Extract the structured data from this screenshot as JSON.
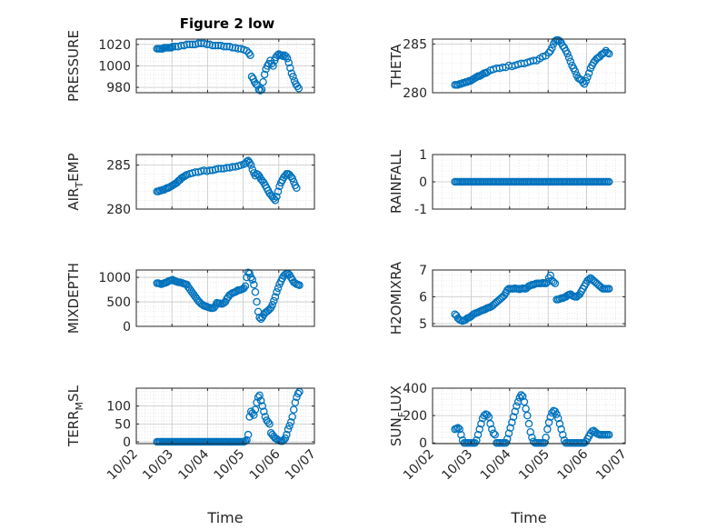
{
  "figure": {
    "title": "Figure 2 low"
  },
  "chart_data": [
    {
      "type": "scatter",
      "ylabel": "PRESSURE",
      "title": "Figure 2 low",
      "ylim": [
        975,
        1025
      ],
      "yticks": [
        980,
        1000,
        1020
      ],
      "xlim": [
        "10/02",
        "10/07"
      ],
      "x": [
        2.58,
        2.62,
        2.66,
        2.7,
        2.74,
        2.78,
        2.82,
        2.86,
        2.9,
        2.94,
        2.98,
        3.02,
        3.1,
        3.18,
        3.26,
        3.34,
        3.42,
        3.5,
        3.58,
        3.66,
        3.74,
        3.82,
        3.9,
        3.98,
        4.06,
        4.14,
        4.22,
        4.3,
        4.38,
        4.46,
        4.54,
        4.62,
        4.7,
        4.78,
        4.86,
        4.94,
        5.02,
        5.1,
        5.16,
        5.2,
        5.24,
        5.28,
        5.32,
        5.36,
        5.4,
        5.44,
        5.48,
        5.52,
        5.56,
        5.6,
        5.64,
        5.68,
        5.72,
        5.76,
        5.8,
        5.84,
        5.88,
        5.92,
        5.96,
        6.0,
        6.04,
        6.08,
        6.12,
        6.16,
        6.2,
        6.24,
        6.28,
        6.32,
        6.36,
        6.4,
        6.44,
        6.48,
        6.52,
        6.56
      ],
      "y": [
        1016,
        1016,
        1016,
        1016,
        1016,
        1017,
        1017,
        1017,
        1017,
        1017,
        1017,
        1018,
        1018,
        1018,
        1019,
        1019,
        1020,
        1020,
        1020,
        1020,
        1021,
        1021,
        1021,
        1020,
        1020,
        1019,
        1019,
        1019,
        1019,
        1018,
        1018,
        1018,
        1017,
        1017,
        1016,
        1016,
        1015,
        1014,
        1012,
        1010,
        990,
        988,
        985,
        983,
        982,
        978,
        977,
        978,
        985,
        992,
        997,
        1000,
        1002,
        1005,
        1002,
        1000,
        1005,
        1008,
        1010,
        1011,
        1010,
        1010,
        1009,
        1010,
        1009,
        1007,
        1003,
        998,
        993,
        990,
        986,
        983,
        981,
        979
      ]
    },
    {
      "type": "scatter",
      "ylabel": "THETA",
      "ylim": [
        280,
        285.5
      ],
      "yticks": [
        280,
        285
      ],
      "xlim": [
        "10/02",
        "10/07"
      ],
      "x": [
        2.58,
        2.62,
        2.66,
        2.7,
        2.74,
        2.78,
        2.82,
        2.86,
        2.9,
        2.94,
        2.98,
        3.02,
        3.06,
        3.1,
        3.14,
        3.18,
        3.22,
        3.26,
        3.3,
        3.34,
        3.38,
        3.42,
        3.5,
        3.58,
        3.66,
        3.74,
        3.82,
        3.9,
        3.98,
        4.06,
        4.14,
        4.22,
        4.3,
        4.38,
        4.46,
        4.54,
        4.62,
        4.7,
        4.78,
        4.86,
        4.94,
        5.02,
        5.06,
        5.1,
        5.14,
        5.18,
        5.22,
        5.26,
        5.3,
        5.34,
        5.38,
        5.42,
        5.46,
        5.5,
        5.54,
        5.58,
        5.62,
        5.66,
        5.7,
        5.74,
        5.78,
        5.82,
        5.86,
        5.9,
        5.94,
        5.98,
        6.02,
        6.06,
        6.1,
        6.14,
        6.18,
        6.22,
        6.26,
        6.3,
        6.34,
        6.38,
        6.42,
        6.46,
        6.5,
        6.54,
        6.58
      ],
      "y": [
        280.8,
        280.8,
        280.8,
        280.9,
        280.9,
        281.0,
        281.0,
        281.1,
        281.1,
        281.2,
        281.2,
        281.3,
        281.4,
        281.5,
        281.6,
        281.7,
        281.7,
        281.8,
        281.9,
        282.0,
        282.0,
        282.1,
        282.3,
        282.4,
        282.5,
        282.5,
        282.6,
        282.6,
        282.8,
        282.7,
        282.8,
        282.9,
        283.0,
        283.0,
        283.1,
        283.2,
        283.3,
        283.3,
        283.5,
        283.7,
        283.8,
        284.1,
        284.3,
        284.6,
        285.0,
        285.3,
        285.4,
        285.4,
        285.3,
        285.1,
        284.8,
        284.6,
        284.3,
        284.0,
        283.6,
        283.2,
        282.8,
        282.5,
        282.2,
        281.8,
        281.5,
        281.4,
        281.3,
        281.1,
        280.9,
        281.2,
        281.6,
        282.0,
        282.5,
        282.8,
        283.1,
        283.3,
        283.5,
        283.6,
        283.7,
        283.9,
        284.0,
        284.1,
        284.3,
        284.1,
        284.0
      ]
    },
    {
      "type": "scatter",
      "ylabel": "AIR_TEMP",
      "ylim": [
        280,
        286.2
      ],
      "yticks": [
        280,
        285
      ],
      "xlim": [
        "10/02",
        "10/07"
      ],
      "x": [
        2.58,
        2.62,
        2.66,
        2.7,
        2.74,
        2.78,
        2.82,
        2.86,
        2.9,
        2.94,
        2.98,
        3.02,
        3.06,
        3.1,
        3.14,
        3.18,
        3.22,
        3.26,
        3.3,
        3.34,
        3.38,
        3.42,
        3.5,
        3.58,
        3.66,
        3.74,
        3.82,
        3.9,
        3.98,
        4.06,
        4.14,
        4.22,
        4.3,
        4.38,
        4.46,
        4.54,
        4.62,
        4.7,
        4.78,
        4.86,
        4.94,
        5.02,
        5.06,
        5.1,
        5.14,
        5.18,
        5.22,
        5.26,
        5.3,
        5.34,
        5.38,
        5.42,
        5.46,
        5.5,
        5.54,
        5.58,
        5.62,
        5.66,
        5.7,
        5.74,
        5.78,
        5.82,
        5.86,
        5.9,
        5.94,
        5.98,
        6.02,
        6.06,
        6.1,
        6.14,
        6.18,
        6.22,
        6.26,
        6.3,
        6.34,
        6.38,
        6.42,
        6.46,
        6.5
      ],
      "y": [
        282.0,
        282.0,
        282.1,
        282.1,
        282.2,
        282.2,
        282.3,
        282.4,
        282.4,
        282.5,
        282.6,
        282.7,
        282.8,
        282.9,
        283.0,
        283.2,
        283.3,
        283.5,
        283.6,
        283.7,
        283.8,
        283.9,
        284.0,
        284.1,
        284.2,
        284.2,
        284.3,
        284.4,
        284.3,
        284.4,
        284.4,
        284.5,
        284.6,
        284.6,
        284.6,
        284.7,
        284.7,
        284.8,
        284.8,
        284.9,
        285.0,
        285.1,
        285.2,
        285.4,
        285.5,
        285.3,
        285.0,
        284.5,
        284.1,
        283.8,
        284.0,
        283.9,
        283.7,
        283.4,
        283.2,
        283.0,
        282.7,
        282.4,
        282.1,
        281.8,
        281.6,
        281.4,
        281.2,
        281.0,
        281.4,
        282.0,
        282.6,
        283.0,
        283.3,
        283.6,
        283.8,
        284.0,
        284.0,
        283.9,
        283.7,
        283.5,
        283.1,
        282.7,
        282.4
      ]
    },
    {
      "type": "scatter",
      "ylabel": "RAINFALL",
      "ylim": [
        -1,
        1
      ],
      "yticks": [
        -1,
        0,
        1
      ],
      "xlim": [
        "10/02",
        "10/07"
      ],
      "x_range": [
        2.58,
        6.58
      ],
      "x_step": 0.04,
      "y_constant": 0
    },
    {
      "type": "scatter",
      "ylabel": "MIXDEPTH",
      "ylim": [
        0,
        1150
      ],
      "yticks": [
        0,
        500,
        1000
      ],
      "xlim": [
        "10/02",
        "10/07"
      ],
      "x": [
        2.58,
        2.62,
        2.66,
        2.7,
        2.74,
        2.78,
        2.82,
        2.86,
        2.9,
        2.94,
        2.98,
        3.02,
        3.06,
        3.1,
        3.14,
        3.18,
        3.22,
        3.26,
        3.3,
        3.34,
        3.38,
        3.42,
        3.46,
        3.5,
        3.54,
        3.58,
        3.62,
        3.66,
        3.7,
        3.74,
        3.78,
        3.82,
        3.86,
        3.9,
        3.94,
        3.98,
        4.02,
        4.06,
        4.1,
        4.14,
        4.18,
        4.22,
        4.26,
        4.3,
        4.34,
        4.38,
        4.42,
        4.46,
        4.5,
        4.54,
        4.58,
        4.62,
        4.66,
        4.7,
        4.74,
        4.78,
        4.82,
        4.86,
        4.9,
        4.94,
        4.98,
        5.02,
        5.06,
        5.1,
        5.14,
        5.18,
        5.22,
        5.26,
        5.3,
        5.34,
        5.38,
        5.42,
        5.46,
        5.5,
        5.54,
        5.58,
        5.62,
        5.66,
        5.7,
        5.74,
        5.78,
        5.82,
        5.86,
        5.9,
        5.94,
        5.98,
        6.02,
        6.06,
        6.1,
        6.14,
        6.18,
        6.22,
        6.26,
        6.3,
        6.34,
        6.38,
        6.42,
        6.46,
        6.5,
        6.54,
        6.58
      ],
      "y": [
        880,
        880,
        870,
        860,
        870,
        880,
        890,
        900,
        920,
        930,
        940,
        950,
        930,
        920,
        910,
        900,
        900,
        890,
        880,
        870,
        860,
        850,
        800,
        760,
        720,
        680,
        640,
        600,
        560,
        520,
        490,
        460,
        440,
        420,
        410,
        400,
        390,
        380,
        370,
        370,
        380,
        420,
        480,
        470,
        470,
        460,
        460,
        480,
        500,
        560,
        600,
        640,
        660,
        680,
        690,
        700,
        720,
        740,
        740,
        750,
        760,
        780,
        820,
        1000,
        1100,
        1080,
        1000,
        950,
        850,
        700,
        500,
        300,
        180,
        150,
        190,
        240,
        280,
        300,
        320,
        350,
        380,
        440,
        520,
        600,
        700,
        780,
        860,
        920,
        980,
        1030,
        1060,
        1080,
        1080,
        1050,
        1000,
        950,
        900,
        880,
        860,
        850,
        840
      ]
    },
    {
      "type": "scatter",
      "ylabel": "H2OMIXRA",
      "ylim": [
        4.9,
        7
      ],
      "yticks": [
        5,
        6,
        7
      ],
      "xlim": [
        "10/02",
        "10/07"
      ],
      "x": [
        2.58,
        2.62,
        2.66,
        2.7,
        2.74,
        2.78,
        2.82,
        2.86,
        2.9,
        2.94,
        2.98,
        3.02,
        3.06,
        3.1,
        3.14,
        3.18,
        3.22,
        3.26,
        3.3,
        3.34,
        3.38,
        3.42,
        3.46,
        3.5,
        3.54,
        3.58,
        3.62,
        3.66,
        3.7,
        3.74,
        3.78,
        3.82,
        3.86,
        3.9,
        3.94,
        3.98,
        4.02,
        4.06,
        4.1,
        4.14,
        4.18,
        4.22,
        4.26,
        4.3,
        4.34,
        4.38,
        4.42,
        4.46,
        4.5,
        4.54,
        4.58,
        4.62,
        4.66,
        4.7,
        4.74,
        4.78,
        4.82,
        4.86,
        4.9,
        4.94,
        4.98,
        5.02,
        5.06,
        5.1,
        5.14,
        5.18,
        5.22,
        5.26,
        5.3,
        5.34,
        5.38,
        5.42,
        5.46,
        5.5,
        5.54,
        5.58,
        5.62,
        5.66,
        5.7,
        5.74,
        5.78,
        5.82,
        5.86,
        5.9,
        5.94,
        5.98,
        6.02,
        6.06,
        6.1,
        6.14,
        6.18,
        6.22,
        6.26,
        6.3,
        6.34,
        6.38,
        6.42,
        6.46,
        6.5,
        6.54,
        6.58
      ],
      "y": [
        5.35,
        5.3,
        5.2,
        5.15,
        5.12,
        5.1,
        5.12,
        5.15,
        5.2,
        5.22,
        5.25,
        5.3,
        5.35,
        5.38,
        5.4,
        5.42,
        5.45,
        5.48,
        5.5,
        5.52,
        5.55,
        5.58,
        5.6,
        5.62,
        5.65,
        5.7,
        5.75,
        5.8,
        5.85,
        5.9,
        5.95,
        6.0,
        6.05,
        6.15,
        6.25,
        6.3,
        6.3,
        6.3,
        6.3,
        6.32,
        6.3,
        6.3,
        6.28,
        6.3,
        6.32,
        6.3,
        6.3,
        6.35,
        6.4,
        6.42,
        6.45,
        6.45,
        6.48,
        6.5,
        6.5,
        6.5,
        6.5,
        6.52,
        6.5,
        6.5,
        6.55,
        6.7,
        6.8,
        6.6,
        6.55,
        6.5,
        5.9,
        5.9,
        5.92,
        5.95,
        5.95,
        5.98,
        6.0,
        6.05,
        6.08,
        6.1,
        6.05,
        6.02,
        6.0,
        6.0,
        6.05,
        6.1,
        6.2,
        6.3,
        6.4,
        6.5,
        6.6,
        6.65,
        6.7,
        6.65,
        6.6,
        6.55,
        6.5,
        6.45,
        6.4,
        6.35,
        6.3,
        6.3,
        6.3,
        6.3,
        6.3
      ]
    },
    {
      "type": "scatter",
      "ylabel": "TERR_MSL",
      "ylim": [
        -5,
        150
      ],
      "yticks": [
        0,
        50,
        100
      ],
      "xlim": [
        "10/02",
        "10/07"
      ],
      "x": [
        2.58,
        2.62,
        2.66,
        2.7,
        2.74,
        2.78,
        2.82,
        2.86,
        2.9,
        2.94,
        2.98,
        3.02,
        3.06,
        3.1,
        3.14,
        3.18,
        3.22,
        3.26,
        3.3,
        3.34,
        3.38,
        3.42,
        3.46,
        3.5,
        3.54,
        3.58,
        3.62,
        3.66,
        3.7,
        3.74,
        3.78,
        3.82,
        3.86,
        3.9,
        3.94,
        3.98,
        4.02,
        4.06,
        4.1,
        4.14,
        4.18,
        4.22,
        4.26,
        4.3,
        4.34,
        4.38,
        4.42,
        4.46,
        4.5,
        4.54,
        4.58,
        4.62,
        4.66,
        4.7,
        4.74,
        4.78,
        4.82,
        4.86,
        4.9,
        4.94,
        4.98,
        5.02,
        5.06,
        5.1,
        5.14,
        5.18,
        5.22,
        5.26,
        5.3,
        5.34,
        5.38,
        5.42,
        5.46,
        5.5,
        5.54,
        5.58,
        5.62,
        5.66,
        5.7,
        5.74,
        5.78,
        5.82,
        5.86,
        5.9,
        5.94,
        5.98,
        6.02,
        6.06,
        6.1,
        6.14,
        6.18,
        6.22,
        6.26,
        6.3,
        6.34,
        6.38,
        6.42,
        6.46,
        6.5,
        6.54,
        6.58
      ],
      "y": [
        0,
        0,
        0,
        0,
        0,
        0,
        0,
        0,
        0,
        0,
        0,
        0,
        0,
        0,
        0,
        0,
        0,
        0,
        0,
        0,
        0,
        0,
        0,
        0,
        0,
        0,
        0,
        0,
        0,
        0,
        0,
        0,
        0,
        0,
        0,
        0,
        0,
        0,
        0,
        0,
        0,
        0,
        0,
        0,
        0,
        0,
        0,
        0,
        0,
        0,
        0,
        0,
        0,
        0,
        0,
        0,
        0,
        0,
        0,
        0,
        0,
        0,
        2,
        5,
        20,
        70,
        85,
        80,
        75,
        90,
        110,
        125,
        130,
        115,
        100,
        85,
        70,
        60,
        55,
        50,
        25,
        20,
        15,
        10,
        8,
        5,
        3,
        2,
        2,
        5,
        10,
        20,
        35,
        45,
        55,
        70,
        90,
        110,
        125,
        135,
        140
      ]
    },
    {
      "type": "scatter",
      "ylabel": "SUN_FLUX",
      "ylim": [
        -5,
        400
      ],
      "yticks": [
        0,
        200,
        400
      ],
      "xlim": [
        "10/02",
        "10/07"
      ],
      "x": [
        2.58,
        2.62,
        2.66,
        2.7,
        2.74,
        2.78,
        2.82,
        2.86,
        2.9,
        2.94,
        2.98,
        3.02,
        3.06,
        3.1,
        3.14,
        3.18,
        3.22,
        3.26,
        3.3,
        3.34,
        3.38,
        3.42,
        3.46,
        3.5,
        3.54,
        3.58,
        3.62,
        3.66,
        3.7,
        3.74,
        3.78,
        3.82,
        3.86,
        3.9,
        3.94,
        3.98,
        4.02,
        4.06,
        4.1,
        4.14,
        4.18,
        4.22,
        4.26,
        4.3,
        4.34,
        4.38,
        4.42,
        4.46,
        4.5,
        4.54,
        4.58,
        4.62,
        4.66,
        4.7,
        4.74,
        4.78,
        4.82,
        4.86,
        4.9,
        4.94,
        4.98,
        5.02,
        5.06,
        5.1,
        5.14,
        5.18,
        5.22,
        5.26,
        5.3,
        5.34,
        5.38,
        5.42,
        5.46,
        5.5,
        5.54,
        5.58,
        5.62,
        5.66,
        5.7,
        5.74,
        5.78,
        5.82,
        5.86,
        5.9,
        5.94,
        5.98,
        6.02,
        6.06,
        6.1,
        6.14,
        6.18,
        6.22,
        6.26,
        6.3,
        6.34,
        6.38,
        6.42,
        6.46,
        6.5,
        6.54,
        6.58
      ],
      "y": [
        100,
        105,
        110,
        100,
        60,
        20,
        0,
        0,
        0,
        0,
        0,
        0,
        0,
        0,
        20,
        60,
        100,
        140,
        180,
        200,
        210,
        205,
        190,
        140,
        100,
        70,
        60,
        0,
        0,
        0,
        0,
        0,
        0,
        0,
        30,
        70,
        110,
        150,
        190,
        230,
        270,
        300,
        330,
        350,
        340,
        300,
        250,
        200,
        140,
        80,
        40,
        10,
        0,
        0,
        0,
        0,
        0,
        0,
        0,
        40,
        100,
        150,
        190,
        220,
        235,
        230,
        210,
        180,
        140,
        100,
        60,
        20,
        0,
        0,
        0,
        0,
        0,
        0,
        0,
        0,
        0,
        0,
        0,
        0,
        0,
        10,
        30,
        50,
        70,
        85,
        90,
        80,
        70,
        65,
        60,
        60,
        60,
        60,
        60,
        60,
        60
      ]
    }
  ],
  "shared": {
    "xticks": [
      "10/02",
      "10/03",
      "10/04",
      "10/05",
      "10/06",
      "10/07"
    ],
    "xlabel": "Time",
    "marker_color": "#0072BD",
    "axis_color": "#262626",
    "grid": "dotted major and minor"
  }
}
